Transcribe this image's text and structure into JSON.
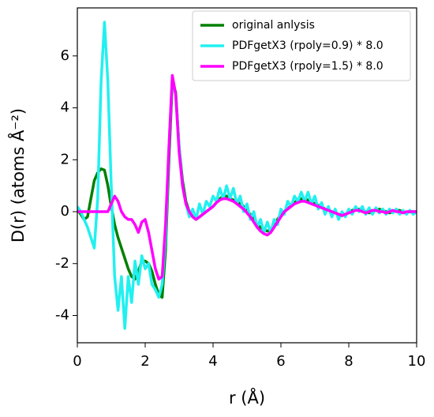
{
  "chart_data": {
    "type": "line",
    "xlabel": "r (Å)",
    "ylabel": "D(r) (atoms Å⁻²)",
    "x": [
      0,
      0.1,
      0.2,
      0.3,
      0.4,
      0.5,
      0.6,
      0.7,
      0.8,
      0.9,
      1.0,
      1.1,
      1.2,
      1.3,
      1.4,
      1.5,
      1.6,
      1.7,
      1.8,
      1.9,
      2.0,
      2.1,
      2.2,
      2.3,
      2.4,
      2.5,
      2.6,
      2.7,
      2.8,
      2.9,
      3.0,
      3.1,
      3.2,
      3.3,
      3.4,
      3.5,
      3.6,
      3.7,
      3.8,
      3.9,
      4.0,
      4.1,
      4.2,
      4.3,
      4.4,
      4.5,
      4.6,
      4.7,
      4.8,
      4.9,
      5.0,
      5.1,
      5.2,
      5.3,
      5.4,
      5.5,
      5.6,
      5.7,
      5.8,
      5.9,
      6.0,
      6.1,
      6.2,
      6.3,
      6.4,
      6.5,
      6.6,
      6.7,
      6.8,
      6.9,
      7.0,
      7.1,
      7.2,
      7.3,
      7.4,
      7.5,
      7.6,
      7.7,
      7.8,
      7.9,
      8.0,
      8.1,
      8.2,
      8.3,
      8.4,
      8.5,
      8.6,
      8.7,
      8.8,
      8.9,
      9.0,
      9.1,
      9.2,
      9.3,
      9.4,
      9.5,
      9.6,
      9.7,
      9.8,
      9.9,
      10.0
    ],
    "series": [
      {
        "name": "original anlysis",
        "color": "#008000",
        "values": [
          0.1,
          -0.1,
          -0.3,
          -0.2,
          0.5,
          1.2,
          1.5,
          1.65,
          1.6,
          1.0,
          0.2,
          -0.5,
          -1.0,
          -1.4,
          -1.8,
          -2.2,
          -2.5,
          -2.6,
          -2.3,
          -1.9,
          -1.9,
          -2.0,
          -2.3,
          -2.8,
          -3.2,
          -3.3,
          -1.5,
          2.0,
          5.0,
          4.6,
          2.5,
          1.2,
          0.4,
          0.0,
          -0.2,
          -0.3,
          -0.2,
          -0.1,
          0.0,
          0.1,
          0.2,
          0.35,
          0.5,
          0.6,
          0.6,
          0.5,
          0.45,
          0.4,
          0.3,
          0.2,
          0.0,
          -0.1,
          -0.3,
          -0.5,
          -0.6,
          -0.7,
          -0.75,
          -0.7,
          -0.5,
          -0.3,
          -0.1,
          0.0,
          0.1,
          0.25,
          0.35,
          0.45,
          0.5,
          0.5,
          0.45,
          0.4,
          0.3,
          0.25,
          0.2,
          0.1,
          0.05,
          0.0,
          -0.05,
          -0.1,
          -0.15,
          -0.1,
          -0.05,
          0.05,
          0.1,
          0.1,
          0.05,
          0.0,
          -0.05,
          0.0,
          0.05,
          0.1,
          0.05,
          0.0,
          -0.05,
          0.0,
          0.05,
          0.05,
          0.0,
          -0.05,
          0.0,
          0.0,
          0.0
        ]
      },
      {
        "name": "PDFgetX3 (rpoly=0.9) * 8.0",
        "color": "#22f0f0",
        "values": [
          0.2,
          0.0,
          -0.3,
          -0.6,
          -1.0,
          -1.4,
          0.5,
          5.0,
          7.3,
          5.0,
          1.0,
          -2.5,
          -3.8,
          -2.5,
          -4.5,
          -2.5,
          -3.5,
          -1.9,
          -2.8,
          -1.7,
          -2.2,
          -2.0,
          -2.8,
          -3.0,
          -3.3,
          -2.8,
          -1.0,
          2.5,
          5.2,
          4.5,
          2.5,
          1.0,
          0.3,
          -0.2,
          0.1,
          -0.3,
          0.3,
          -0.1,
          0.4,
          0.2,
          0.6,
          0.4,
          0.9,
          0.5,
          1.0,
          0.5,
          0.9,
          0.3,
          0.6,
          0.0,
          0.3,
          -0.3,
          0.0,
          -0.6,
          -0.3,
          -0.8,
          -0.4,
          -0.8,
          -0.3,
          -0.5,
          0.1,
          -0.1,
          0.4,
          0.2,
          0.6,
          0.4,
          0.75,
          0.4,
          0.75,
          0.3,
          0.6,
          0.1,
          0.35,
          -0.1,
          0.2,
          -0.2,
          0.1,
          -0.3,
          0.0,
          -0.2,
          0.1,
          -0.1,
          0.2,
          0.0,
          0.2,
          -0.1,
          0.15,
          -0.1,
          0.15,
          -0.05,
          0.1,
          -0.1,
          0.1,
          -0.05,
          0.1,
          -0.1,
          0.05,
          -0.1,
          0.05,
          -0.1,
          0.0
        ]
      },
      {
        "name": "PDFgetX3 (rpoly=1.5) * 8.0",
        "color": "#ff00ff",
        "values": [
          0.0,
          0.0,
          0.0,
          0.0,
          0.0,
          0.0,
          0.0,
          0.0,
          0.0,
          0.0,
          0.3,
          0.6,
          0.4,
          0.0,
          -0.2,
          -0.3,
          -0.3,
          -0.5,
          -0.8,
          -0.4,
          -0.3,
          -0.8,
          -1.5,
          -2.2,
          -2.6,
          -2.5,
          -0.5,
          2.5,
          5.25,
          4.5,
          2.3,
          1.0,
          0.3,
          0.0,
          -0.2,
          -0.3,
          -0.2,
          -0.1,
          0.0,
          0.1,
          0.2,
          0.35,
          0.45,
          0.5,
          0.5,
          0.45,
          0.4,
          0.3,
          0.2,
          0.1,
          -0.05,
          -0.2,
          -0.4,
          -0.6,
          -0.75,
          -0.85,
          -0.9,
          -0.8,
          -0.6,
          -0.4,
          -0.2,
          0.0,
          0.1,
          0.2,
          0.3,
          0.35,
          0.4,
          0.4,
          0.35,
          0.3,
          0.25,
          0.2,
          0.15,
          0.1,
          0.05,
          0.0,
          -0.05,
          -0.1,
          -0.15,
          -0.1,
          -0.05,
          0.0,
          0.05,
          0.05,
          0.0,
          -0.05,
          0.0,
          0.05,
          0.05,
          0.0,
          0.0,
          -0.05,
          0.0,
          0.05,
          0.0,
          0.0,
          -0.05,
          0.0,
          0.0,
          0.0,
          0.0
        ]
      }
    ],
    "xlim": [
      0,
      10
    ],
    "xticks": [
      0,
      2,
      4,
      6,
      8,
      10
    ],
    "ylim": [
      -5.05,
      7.85
    ],
    "yticks": [
      -4,
      -2,
      0,
      2,
      4,
      6
    ],
    "grid": false,
    "legend": "upper right"
  }
}
